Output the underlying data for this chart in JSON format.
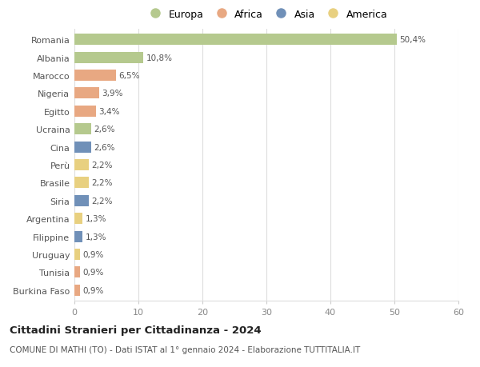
{
  "categories": [
    "Romania",
    "Albania",
    "Marocco",
    "Nigeria",
    "Egitto",
    "Ucraina",
    "Cina",
    "Perù",
    "Brasile",
    "Siria",
    "Argentina",
    "Filippine",
    "Uruguay",
    "Tunisia",
    "Burkina Faso"
  ],
  "values": [
    50.4,
    10.8,
    6.5,
    3.9,
    3.4,
    2.6,
    2.6,
    2.2,
    2.2,
    2.2,
    1.3,
    1.3,
    0.9,
    0.9,
    0.9
  ],
  "labels": [
    "50,4%",
    "10,8%",
    "6,5%",
    "3,9%",
    "3,4%",
    "2,6%",
    "2,6%",
    "2,2%",
    "2,2%",
    "2,2%",
    "1,3%",
    "1,3%",
    "0,9%",
    "0,9%",
    "0,9%"
  ],
  "colors": [
    "#b5c98e",
    "#b5c98e",
    "#e8a882",
    "#e8a882",
    "#e8a882",
    "#b5c98e",
    "#7090b8",
    "#e8d080",
    "#e8d080",
    "#7090b8",
    "#e8d080",
    "#7090b8",
    "#e8d080",
    "#e8a882",
    "#e8a882"
  ],
  "legend_labels": [
    "Europa",
    "Africa",
    "Asia",
    "America"
  ],
  "legend_colors": [
    "#b5c98e",
    "#e8a882",
    "#7090b8",
    "#e8d080"
  ],
  "title": "Cittadini Stranieri per Cittadinanza - 2024",
  "subtitle": "COMUNE DI MATHI (TO) - Dati ISTAT al 1° gennaio 2024 - Elaborazione TUTTITALIA.IT",
  "xlim": [
    0,
    60
  ],
  "xticks": [
    0,
    10,
    20,
    30,
    40,
    50,
    60
  ],
  "background_color": "#ffffff",
  "grid_color": "#dddddd"
}
